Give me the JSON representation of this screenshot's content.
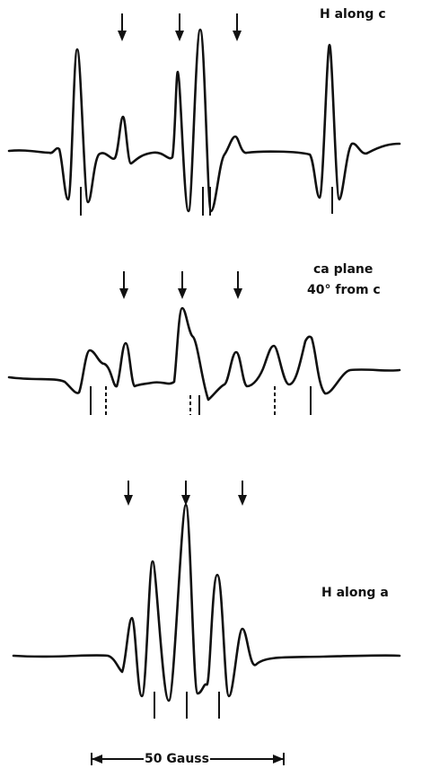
{
  "spectra": [
    {
      "label": "H along c"
    },
    {
      "label_lines": [
        "ca plane",
        "40° from c"
      ]
    },
    {
      "label": "H along a"
    }
  ],
  "scale_bar": "50 Gauss"
}
